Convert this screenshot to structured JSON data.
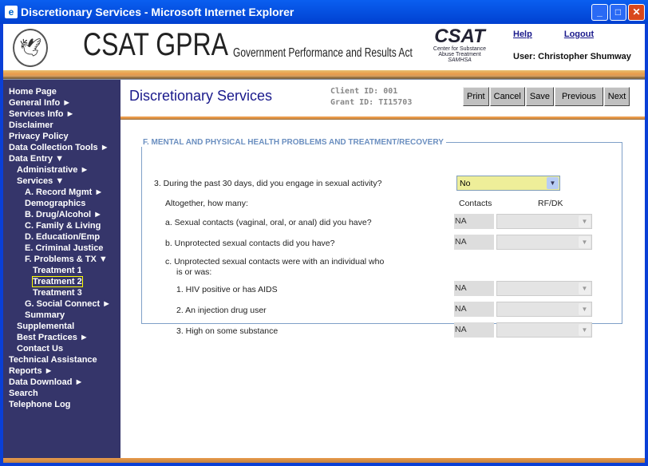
{
  "window": {
    "title": "Discretionary Services - Microsoft Internet Explorer"
  },
  "header": {
    "seal_text": "DEPARTMENT OF HEALTH & HUMAN SERVICES",
    "app_title": "CSAT GPRA",
    "app_subtitle": "Government Performance and Results Act",
    "logo_title": "CSAT",
    "logo_line1": "Center for Substance",
    "logo_line2": "Abuse Treatment",
    "logo_line3": "SAMHSA",
    "help": "Help",
    "logout": "Logout",
    "user": "User: Christopher Shumway"
  },
  "sidebar": {
    "items": [
      {
        "label": "Home Page",
        "indent": 0
      },
      {
        "label": "General Info ►",
        "indent": 0
      },
      {
        "label": "Services Info ►",
        "indent": 0
      },
      {
        "label": "Disclaimer",
        "indent": 0
      },
      {
        "label": "Privacy Policy",
        "indent": 0
      },
      {
        "label": "Data Collection Tools ►",
        "indent": 0
      },
      {
        "label": "Data Entry ▼",
        "indent": 0
      },
      {
        "label": "Administrative ►",
        "indent": 1
      },
      {
        "label": "Services ▼",
        "indent": 1
      },
      {
        "label": "A. Record Mgmt ►",
        "indent": 2
      },
      {
        "label": "Demographics",
        "indent": 2
      },
      {
        "label": "B. Drug/Alcohol ►",
        "indent": 2
      },
      {
        "label": "C. Family & Living",
        "indent": 2
      },
      {
        "label": "D. Education/Emp",
        "indent": 2
      },
      {
        "label": "E. Criminal Justice",
        "indent": 2
      },
      {
        "label": "F. Problems & TX ▼",
        "indent": 2
      },
      {
        "label": "Treatment 1",
        "indent": 3
      },
      {
        "label": "Treatment 2",
        "indent": 3,
        "selected": true
      },
      {
        "label": "Treatment 3",
        "indent": 3
      },
      {
        "label": "G. Social Connect ►",
        "indent": 2
      },
      {
        "label": "Summary",
        "indent": 2
      },
      {
        "label": "Supplemental",
        "indent": 1
      },
      {
        "label": "Best Practices ►",
        "indent": 1
      },
      {
        "label": "Contact Us",
        "indent": 1
      },
      {
        "label": "Technical Assistance",
        "indent": 0
      },
      {
        "label": "Reports ►",
        "indent": 0
      },
      {
        "label": "Data Download ►",
        "indent": 0
      },
      {
        "label": "Search",
        "indent": 0
      },
      {
        "label": "Telephone Log",
        "indent": 0
      }
    ]
  },
  "main": {
    "title": "Discretionary Services",
    "client_id": "Client ID: 001",
    "grant_id": "Grant ID: TI15703",
    "buttons": [
      "Print",
      "Cancel",
      "Save",
      "Previous",
      "Next"
    ],
    "section": "F. MENTAL AND PHYSICAL HEALTH PROBLEMS AND TREATMENT/RECOVERY",
    "q3": "3. During the past 30 days, did you engage in sexual activity?",
    "q3_value": "No",
    "altogether": "Altogether, how many:",
    "col_contacts": "Contacts",
    "col_rfdk": "RF/DK",
    "qa": "a. Sexual contacts (vaginal, oral, or anal) did you have?",
    "qa_value": "NA",
    "qb": "b. Unprotected sexual contacts did you have?",
    "qb_value": "NA",
    "qc1": "c. Unprotected sexual contacts were with an individual who",
    "qc2": "is or was:",
    "q1": "1. HIV positive or has AIDS",
    "q1_value": "NA",
    "q2": "2. An injection drug user",
    "q2_value": "NA",
    "q3c": "3. High on some substance",
    "q3c_value": "NA"
  },
  "colors": {
    "sidebar": "#35356a",
    "title": "#1a1a8c",
    "select_highlight": "#eeee99"
  }
}
